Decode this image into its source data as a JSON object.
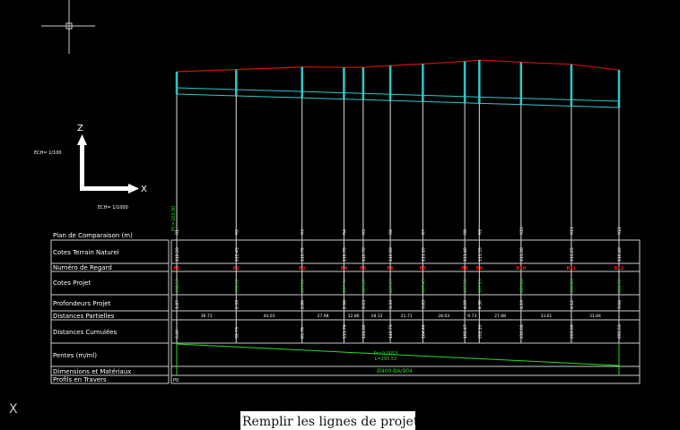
{
  "axes": {
    "z_label": "Z",
    "x_label": "X",
    "vertical_scale": "ECH= 1/100",
    "horizontal_scale": "ECH= 1/1000"
  },
  "plan_label": "PC=103.00",
  "row_labels": {
    "plan": "Plan de Comparaison (m)",
    "tn": "Cotes Terrain Naturel",
    "numero": "Numéro de Regard",
    "projet": "Cotes Projet",
    "profondeur": "Profondeurs Projet",
    "dist_partielles": "Distances Partielles",
    "dist_cumulees": "Distances Cumulées",
    "pentes": "Pentes (m/ml)",
    "dimensions": "Dimensions et Matériaux",
    "profils": "Profils en Travers"
  },
  "stations": [
    {
      "id": "R1",
      "tn": 110.2,
      "projet": 108.33,
      "prof": 1.87,
      "cum": "0.00"
    },
    {
      "id": "R2",
      "tn": 110.45,
      "projet": 108.12,
      "prof": 2.33,
      "cum": "39.73"
    },
    {
      "id": "R3",
      "tn": 110.75,
      "projet": 107.89,
      "prof": 2.86,
      "cum": "83.76"
    },
    {
      "id": "R4",
      "tn": 110.7,
      "projet": 107.74,
      "prof": 2.96,
      "cum": "111.74"
    },
    {
      "id": "R5",
      "tn": 110.7,
      "projet": 107.67,
      "prof": 3.03,
      "cum": "124.60"
    },
    {
      "id": "R6",
      "tn": 110.9,
      "projet": 107.57,
      "prof": 3.33,
      "cum": "142.73"
    },
    {
      "id": "R7",
      "tn": 111.1,
      "projet": 107.45,
      "prof": 3.65,
      "cum": "164.44"
    },
    {
      "id": "R8",
      "tn": 111.4,
      "projet": 107.31,
      "prof": 4.09,
      "cum": "192.47"
    },
    {
      "id": "R9",
      "tn": 111.55,
      "projet": 107.25,
      "prof": 4.3,
      "cum": "202.20"
    },
    {
      "id": "R10",
      "tn": 111.3,
      "projet": 107.11,
      "prof": 4.19,
      "cum": "230.08"
    },
    {
      "id": "R11",
      "tn": 111.05,
      "projet": 106.93,
      "prof": 4.12,
      "cum": "263.69"
    },
    {
      "id": "R12",
      "tn": 110.4,
      "projet": 106.76,
      "prof": 3.64,
      "cum": "295.53"
    }
  ],
  "partial_distances": [
    "39.73",
    "44.03",
    "27.98",
    "12.86",
    "18.13",
    "21.71",
    "28.03",
    "9.73",
    "27.88",
    "33.61",
    "31.84"
  ],
  "pente_label": [
    "Pr=0.0053",
    "L=295.53"
  ],
  "dimensions_value": "Ø400-BA/904",
  "profils_value": "P0",
  "colors": {
    "background": "#000000",
    "ground": "#d01010",
    "pipe": "#30c8c8",
    "lines": "#ffffff",
    "green": "#22dd22",
    "red": "#ff1010"
  },
  "command_prompt": "Remplir les lignes de projet de cartouche",
  "ucs_icon_label": "X"
}
